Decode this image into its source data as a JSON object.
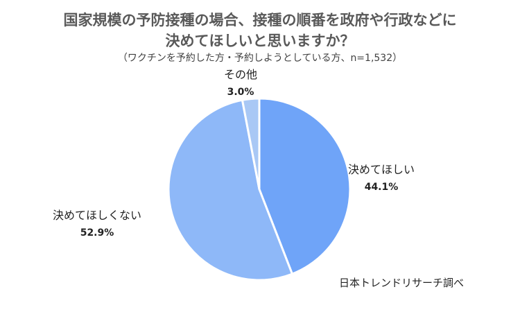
{
  "title_line1": "国家規模の予防接種の場合、接種の順番を政府や行政などに",
  "title_line2": "決めてほしいと思いますか？",
  "subtitle": "（ワクチンを予約した方・予約しようとしている方、n=1,532）",
  "source": "日本トレンドリサーチ調べ",
  "chart_data": {
    "type": "pie",
    "title": "国家規模の予防接種の場合、接種の順番を政府や行政などに決めてほしいと思いますか？",
    "subtitle": "（ワクチンを予約した方・予約しようとしている方、n=1,532）",
    "unit": "%",
    "start": "top, clockwise",
    "slices": [
      {
        "label": "決めてほしい",
        "value": 44.1,
        "value_label": "44.1%",
        "color": "#6fa4f8"
      },
      {
        "label": "決めてほしくない",
        "value": 52.9,
        "value_label": "52.9%",
        "color": "#8eb8f8"
      },
      {
        "label": "その他",
        "value": 3.0,
        "value_label": "3.0%",
        "color": "#a9c8f5"
      }
    ]
  }
}
